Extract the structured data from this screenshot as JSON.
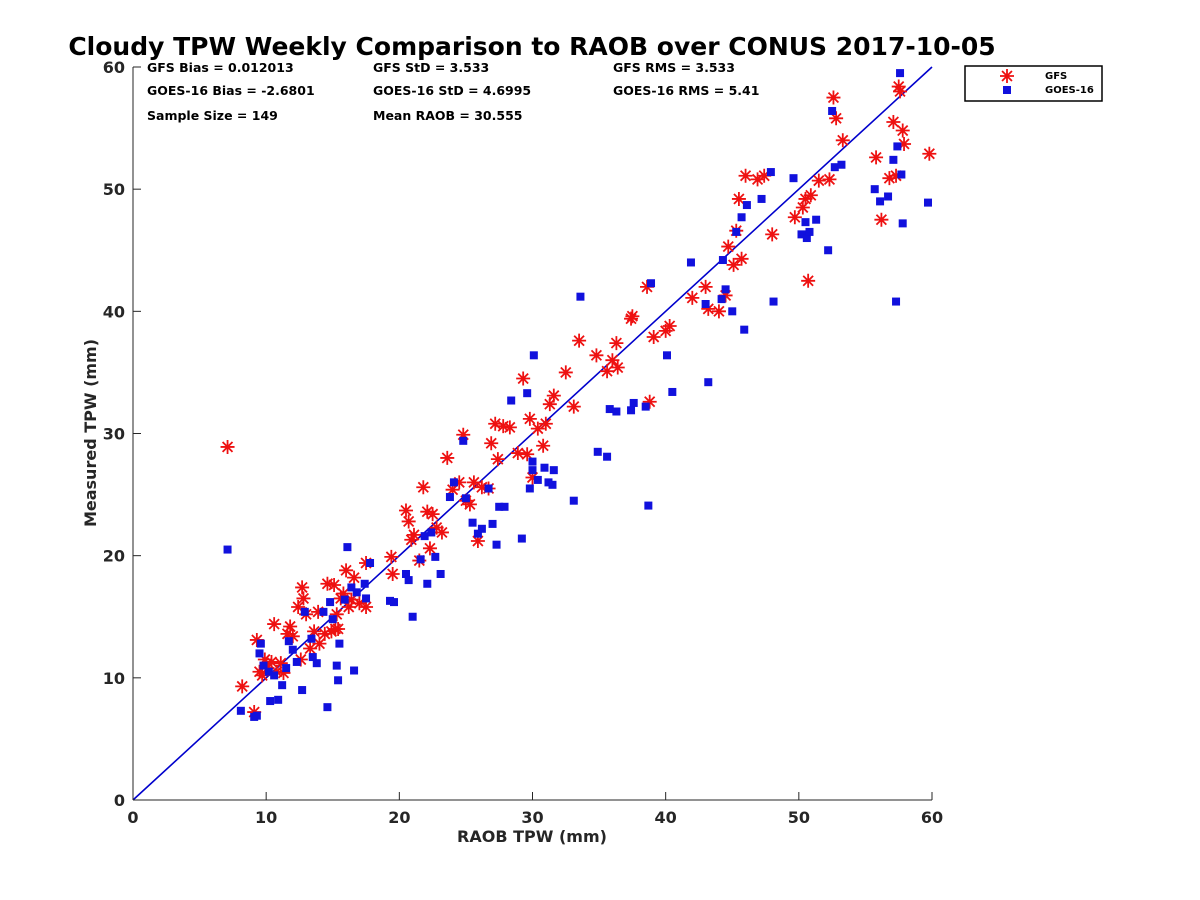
{
  "chart_data": {
    "type": "scatter",
    "title": "Cloudy TPW Weekly Comparison to RAOB over CONUS 2017-10-05",
    "xlabel": "RAOB TPW (mm)",
    "ylabel": "Measured TPW (mm)",
    "xlim": [
      0,
      60
    ],
    "ylim": [
      0,
      60
    ],
    "xticks": [
      0,
      10,
      20,
      30,
      40,
      50,
      60
    ],
    "yticks": [
      0,
      10,
      20,
      30,
      40,
      50,
      60
    ],
    "grid": false,
    "legend_position": "top-right, outside plot",
    "reference_line": {
      "type": "1:1",
      "color": "#0000cc"
    },
    "stats": [
      [
        "GFS Bias = 0.012013",
        "GFS StD = 3.533",
        "GFS RMS = 3.533"
      ],
      [
        "GOES-16 Bias = -2.6801",
        "GOES-16 StD = 4.6995",
        "GOES-16 RMS = 5.41"
      ],
      [
        "Sample Size = 149",
        "Mean RAOB = 30.555",
        ""
      ]
    ],
    "series": [
      {
        "name": "GFS",
        "marker": "asterisk",
        "color": "#ee1111",
        "points": [
          [
            7.1,
            28.9
          ],
          [
            8.2,
            9.3
          ],
          [
            9.1,
            7.2
          ],
          [
            9.3,
            13.1
          ],
          [
            9.5,
            10.5
          ],
          [
            9.7,
            10.2
          ],
          [
            9.9,
            11.5
          ],
          [
            10.1,
            10.8
          ],
          [
            10.4,
            11.3
          ],
          [
            10.6,
            14.4
          ],
          [
            10.8,
            10.5
          ],
          [
            11.1,
            11.2
          ],
          [
            11.3,
            10.4
          ],
          [
            11.6,
            13.6
          ],
          [
            11.8,
            14.2
          ],
          [
            12.0,
            13.4
          ],
          [
            12.4,
            15.8
          ],
          [
            12.6,
            11.5
          ],
          [
            12.7,
            17.4
          ],
          [
            12.8,
            16.5
          ],
          [
            13.0,
            15.2
          ],
          [
            13.3,
            12.4
          ],
          [
            13.6,
            13.8
          ],
          [
            13.9,
            15.4
          ],
          [
            14.0,
            12.8
          ],
          [
            14.4,
            13.6
          ],
          [
            14.6,
            17.7
          ],
          [
            14.9,
            13.8
          ],
          [
            15.1,
            17.6
          ],
          [
            15.2,
            14.0
          ],
          [
            15.3,
            15.2
          ],
          [
            15.4,
            14.0
          ],
          [
            15.6,
            16.5
          ],
          [
            15.8,
            16.9
          ],
          [
            16.0,
            18.8
          ],
          [
            16.2,
            15.8
          ],
          [
            16.4,
            16.4
          ],
          [
            16.6,
            18.2
          ],
          [
            17.0,
            16.1
          ],
          [
            17.5,
            19.4
          ],
          [
            17.5,
            15.8
          ],
          [
            19.4,
            19.9
          ],
          [
            19.5,
            18.5
          ],
          [
            20.5,
            23.7
          ],
          [
            20.7,
            22.8
          ],
          [
            20.9,
            21.3
          ],
          [
            21.1,
            21.7
          ],
          [
            21.5,
            19.6
          ],
          [
            21.8,
            25.6
          ],
          [
            22.1,
            23.6
          ],
          [
            22.3,
            20.6
          ],
          [
            22.5,
            23.4
          ],
          [
            22.8,
            22.3
          ],
          [
            23.2,
            21.9
          ],
          [
            23.6,
            28.0
          ],
          [
            24.0,
            25.4
          ],
          [
            24.5,
            26.0
          ],
          [
            24.8,
            29.9
          ],
          [
            25.0,
            24.5
          ],
          [
            25.3,
            24.2
          ],
          [
            25.6,
            26.0
          ],
          [
            25.9,
            21.2
          ],
          [
            26.2,
            25.6
          ],
          [
            26.7,
            25.5
          ],
          [
            26.9,
            29.2
          ],
          [
            27.2,
            30.8
          ],
          [
            27.4,
            27.9
          ],
          [
            27.8,
            30.6
          ],
          [
            28.3,
            30.5
          ],
          [
            28.9,
            28.4
          ],
          [
            29.3,
            34.5
          ],
          [
            29.6,
            28.3
          ],
          [
            29.8,
            31.2
          ],
          [
            30.0,
            26.4
          ],
          [
            30.4,
            30.4
          ],
          [
            30.8,
            29.0
          ],
          [
            31.0,
            30.8
          ],
          [
            31.3,
            32.4
          ],
          [
            31.6,
            33.1
          ],
          [
            32.5,
            35.0
          ],
          [
            33.1,
            32.2
          ],
          [
            33.5,
            37.6
          ],
          [
            34.8,
            36.4
          ],
          [
            35.6,
            35.1
          ],
          [
            36.0,
            36.0
          ],
          [
            36.3,
            37.4
          ],
          [
            36.4,
            35.4
          ],
          [
            37.4,
            39.4
          ],
          [
            37.5,
            39.6
          ],
          [
            38.6,
            42.0
          ],
          [
            38.8,
            32.6
          ],
          [
            39.1,
            37.9
          ],
          [
            40.0,
            38.4
          ],
          [
            40.3,
            38.8
          ],
          [
            42.0,
            41.1
          ],
          [
            43.0,
            42.0
          ],
          [
            43.2,
            40.2
          ],
          [
            44.0,
            40.0
          ],
          [
            44.5,
            41.3
          ],
          [
            44.7,
            45.3
          ],
          [
            45.1,
            43.8
          ],
          [
            45.3,
            46.6
          ],
          [
            45.5,
            49.2
          ],
          [
            45.7,
            44.3
          ],
          [
            46.0,
            51.1
          ],
          [
            46.9,
            50.8
          ],
          [
            47.4,
            51.1
          ],
          [
            48.0,
            46.3
          ],
          [
            49.7,
            47.7
          ],
          [
            50.3,
            48.5
          ],
          [
            50.5,
            49.2
          ],
          [
            50.7,
            42.5
          ],
          [
            50.9,
            49.5
          ],
          [
            51.5,
            50.7
          ],
          [
            52.3,
            50.8
          ],
          [
            52.6,
            57.5
          ],
          [
            52.8,
            55.8
          ],
          [
            53.3,
            54.0
          ],
          [
            55.8,
            52.6
          ],
          [
            56.2,
            47.5
          ],
          [
            56.8,
            50.9
          ],
          [
            57.1,
            55.5
          ],
          [
            57.3,
            51.1
          ],
          [
            57.5,
            58.4
          ],
          [
            57.6,
            58.0
          ],
          [
            57.8,
            54.8
          ],
          [
            57.9,
            53.7
          ],
          [
            59.8,
            52.9
          ]
        ]
      },
      {
        "name": "GOES-16",
        "marker": "square",
        "color": "#1111dd",
        "points": [
          [
            7.1,
            20.5
          ],
          [
            8.1,
            7.3
          ],
          [
            9.1,
            6.8
          ],
          [
            9.3,
            6.9
          ],
          [
            9.5,
            12.0
          ],
          [
            9.6,
            12.8
          ],
          [
            9.8,
            11.0
          ],
          [
            10.2,
            10.5
          ],
          [
            10.3,
            8.1
          ],
          [
            10.6,
            10.2
          ],
          [
            10.9,
            8.2
          ],
          [
            11.2,
            9.4
          ],
          [
            11.5,
            10.8
          ],
          [
            11.7,
            13.0
          ],
          [
            12.0,
            12.3
          ],
          [
            12.3,
            11.3
          ],
          [
            12.7,
            9.0
          ],
          [
            12.9,
            15.4
          ],
          [
            13.4,
            13.2
          ],
          [
            13.5,
            11.7
          ],
          [
            13.8,
            11.2
          ],
          [
            14.3,
            15.4
          ],
          [
            14.6,
            7.6
          ],
          [
            14.8,
            16.2
          ],
          [
            15.0,
            14.8
          ],
          [
            15.3,
            11.0
          ],
          [
            15.4,
            9.8
          ],
          [
            15.5,
            12.8
          ],
          [
            15.9,
            16.4
          ],
          [
            16.1,
            20.7
          ],
          [
            16.4,
            17.4
          ],
          [
            16.6,
            10.6
          ],
          [
            16.8,
            17.0
          ],
          [
            17.4,
            17.7
          ],
          [
            17.5,
            16.5
          ],
          [
            17.8,
            19.4
          ],
          [
            19.3,
            16.3
          ],
          [
            19.6,
            16.2
          ],
          [
            20.5,
            18.5
          ],
          [
            20.7,
            18.0
          ],
          [
            21.0,
            15.0
          ],
          [
            21.6,
            19.7
          ],
          [
            21.9,
            21.6
          ],
          [
            22.1,
            17.7
          ],
          [
            22.4,
            21.9
          ],
          [
            22.7,
            19.9
          ],
          [
            23.1,
            18.5
          ],
          [
            23.8,
            24.8
          ],
          [
            24.1,
            26.0
          ],
          [
            24.8,
            29.4
          ],
          [
            25.0,
            24.7
          ],
          [
            25.5,
            22.7
          ],
          [
            25.9,
            21.8
          ],
          [
            26.2,
            22.2
          ],
          [
            26.7,
            25.5
          ],
          [
            27.0,
            22.6
          ],
          [
            27.3,
            20.9
          ],
          [
            27.5,
            24.0
          ],
          [
            27.9,
            24.0
          ],
          [
            28.4,
            32.7
          ],
          [
            29.2,
            21.4
          ],
          [
            29.6,
            33.3
          ],
          [
            29.8,
            25.5
          ],
          [
            30.0,
            27.7
          ],
          [
            30.0,
            27.0
          ],
          [
            30.1,
            36.4
          ],
          [
            30.4,
            26.2
          ],
          [
            30.9,
            27.2
          ],
          [
            31.2,
            26.0
          ],
          [
            31.5,
            25.8
          ],
          [
            31.6,
            27.0
          ],
          [
            33.1,
            24.5
          ],
          [
            33.6,
            41.2
          ],
          [
            34.9,
            28.5
          ],
          [
            35.6,
            28.1
          ],
          [
            35.8,
            32.0
          ],
          [
            36.3,
            31.8
          ],
          [
            37.4,
            31.9
          ],
          [
            37.6,
            32.5
          ],
          [
            38.5,
            32.2
          ],
          [
            38.7,
            24.1
          ],
          [
            38.9,
            42.3
          ],
          [
            40.1,
            36.4
          ],
          [
            40.5,
            33.4
          ],
          [
            41.9,
            44.0
          ],
          [
            43.0,
            40.6
          ],
          [
            43.2,
            34.2
          ],
          [
            44.2,
            41.0
          ],
          [
            44.3,
            44.2
          ],
          [
            44.5,
            41.8
          ],
          [
            45.0,
            40.0
          ],
          [
            45.3,
            46.5
          ],
          [
            45.7,
            47.7
          ],
          [
            45.9,
            38.5
          ],
          [
            46.1,
            48.7
          ],
          [
            47.2,
            49.2
          ],
          [
            47.9,
            51.4
          ],
          [
            48.1,
            40.8
          ],
          [
            49.6,
            50.9
          ],
          [
            50.2,
            46.3
          ],
          [
            50.5,
            47.3
          ],
          [
            50.6,
            46.0
          ],
          [
            50.8,
            46.5
          ],
          [
            51.3,
            47.5
          ],
          [
            52.2,
            45.0
          ],
          [
            52.5,
            56.4
          ],
          [
            52.7,
            51.8
          ],
          [
            53.2,
            52.0
          ],
          [
            55.7,
            50.0
          ],
          [
            56.1,
            49.0
          ],
          [
            56.7,
            49.4
          ],
          [
            57.1,
            52.4
          ],
          [
            57.3,
            40.8
          ],
          [
            57.4,
            53.5
          ],
          [
            57.6,
            59.5
          ],
          [
            57.7,
            51.2
          ],
          [
            57.8,
            47.2
          ],
          [
            59.7,
            48.9
          ]
        ]
      }
    ]
  }
}
